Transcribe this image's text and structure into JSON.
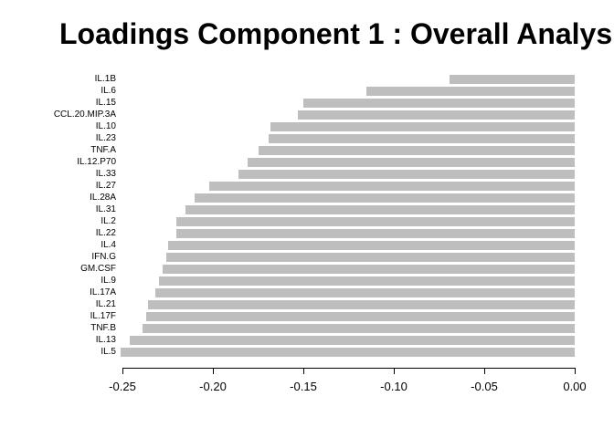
{
  "chart_data": {
    "type": "bar",
    "orientation": "horizontal",
    "title": "Loadings Component 1 : Overall Analys",
    "categories": [
      "IL.1B",
      "IL.6",
      "IL.15",
      "CCL.20.MIP.3A",
      "IL.10",
      "IL.23",
      "TNF.A",
      "IL.12.P70",
      "IL.33",
      "IL.27",
      "IL.28A",
      "IL.31",
      "IL.2",
      "IL.22",
      "IL.4",
      "IFN.G",
      "GM.CSF",
      "IL.9",
      "IL.17A",
      "IL.21",
      "IL.17F",
      "TNF.B",
      "IL.13",
      "IL.5"
    ],
    "values": [
      -0.069,
      -0.115,
      -0.15,
      -0.153,
      -0.168,
      -0.169,
      -0.175,
      -0.181,
      -0.186,
      -0.202,
      -0.21,
      -0.215,
      -0.22,
      -0.22,
      -0.225,
      -0.226,
      -0.228,
      -0.23,
      -0.232,
      -0.236,
      -0.237,
      -0.239,
      -0.246,
      -0.251
    ],
    "xlabel": "",
    "ylabel": "",
    "xlim": [
      -0.26,
      0
    ],
    "x_ticks": [
      "-0.25",
      "-0.20",
      "-0.15",
      "-0.10",
      "-0.05",
      "0.00"
    ],
    "x_tick_values": [
      -0.25,
      -0.2,
      -0.15,
      -0.1,
      -0.05,
      0.0
    ],
    "bar_color": "#bebebe",
    "axis_color": "#000000",
    "background_color": "#ffffff",
    "grid": false,
    "legend": false
  }
}
